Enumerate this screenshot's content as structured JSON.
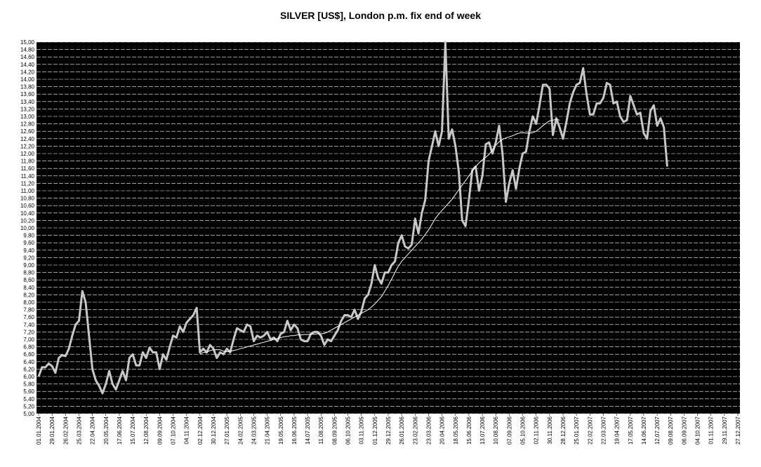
{
  "chart_data": {
    "type": "line",
    "title": "SILVER [US$], London p.m. fix end of week",
    "xlabel": "",
    "ylabel": "",
    "ylim": [
      5.0,
      15.0
    ],
    "y_ticks": [
      "5,00",
      "5,20",
      "5,40",
      "5,60",
      "5,80",
      "6,00",
      "6,20",
      "6,40",
      "6,60",
      "6,80",
      "7,00",
      "7,20",
      "7,40",
      "7,60",
      "7,80",
      "8,00",
      "8,20",
      "8,40",
      "8,60",
      "8,80",
      "9,00",
      "9,20",
      "9,40",
      "9,60",
      "9,80",
      "10,00",
      "10,20",
      "10,40",
      "10,60",
      "10,80",
      "11,00",
      "11,20",
      "11,40",
      "11,60",
      "11,80",
      "12,00",
      "12,20",
      "12,40",
      "12,60",
      "12,80",
      "13,00",
      "13,20",
      "13,40",
      "13,60",
      "13,80",
      "14,00",
      "14,20",
      "14,40",
      "14,60",
      "14,80",
      "15,00"
    ],
    "x_ticks": [
      "01.01.2004",
      "29.01.2004",
      "26.02.2004",
      "25.03.2004",
      "22.04.2004",
      "20.05.2004",
      "17.06.2004",
      "15.07.2004",
      "12.08.2004",
      "09.09.2004",
      "07.10.2004",
      "04.11.2004",
      "02.12.2004",
      "30.12.2004",
      "27.01.2005",
      "24.02.2005",
      "24.03.2005",
      "21.04.2005",
      "19.05.2005",
      "16.06.2005",
      "14.07.2005",
      "11.08.2005",
      "08.09.2005",
      "06.10.2005",
      "03.11.2005",
      "01.12.2005",
      "29.12.2005",
      "26.01.2006",
      "23.02.2006",
      "23.03.2006",
      "20.04.2006",
      "18.05.2006",
      "15.06.2006",
      "13.07.2006",
      "10.08.2006",
      "07.09.2006",
      "05.10.2006",
      "02.11.2006",
      "30.11.2006",
      "28.12.2006",
      "25.01.2007",
      "22.02.2007",
      "22.03.2007",
      "19.04.2007",
      "17.05.2007",
      "14.06.2007",
      "12.07.2007",
      "09.08.2007",
      "06.09.2007",
      "04.10.2007",
      "01.11.2007",
      "29.11.2007",
      "27.12.2007"
    ],
    "background": "#000000",
    "grid": "horizontal",
    "series": [
      {
        "color": "#c8c8c8",
        "values": [
          6.0,
          6.25,
          6.25,
          6.35,
          6.28,
          6.1,
          6.5,
          6.58,
          6.55,
          6.75,
          7.1,
          7.4,
          7.5,
          8.3,
          8.0,
          7.1,
          6.2,
          5.9,
          5.75,
          5.55,
          5.8,
          6.15,
          5.8,
          5.65,
          5.9,
          6.15,
          5.9,
          6.5,
          6.6,
          6.3,
          6.3,
          6.65,
          6.5,
          6.78,
          6.65,
          6.65,
          6.2,
          6.6,
          6.45,
          6.8,
          7.1,
          7.05,
          7.35,
          7.2,
          7.45,
          7.55,
          7.65,
          7.85,
          6.65,
          6.75,
          6.65,
          6.85,
          6.75,
          6.5,
          6.65,
          6.6,
          6.75,
          6.65,
          7.0,
          7.3,
          7.25,
          7.2,
          7.4,
          7.35,
          6.95,
          7.1,
          7.05,
          7.1,
          7.2,
          7.0,
          7.05,
          6.95,
          7.15,
          7.2,
          7.5,
          7.25,
          7.4,
          7.3,
          7.0,
          6.95,
          6.95,
          7.15,
          7.2,
          7.2,
          7.1,
          6.85,
          7.0,
          6.95,
          7.1,
          7.25,
          7.5,
          7.65,
          7.65,
          7.6,
          7.8,
          7.55,
          7.75,
          8.1,
          8.2,
          8.5,
          9.0,
          8.65,
          8.5,
          8.8,
          8.8,
          9.0,
          9.1,
          9.6,
          9.8,
          9.5,
          9.45,
          9.55,
          10.25,
          9.85,
          10.4,
          10.75,
          11.8,
          12.2,
          12.6,
          12.2,
          12.6,
          15.0,
          12.4,
          12.65,
          12.2,
          11.5,
          10.2,
          10.05,
          10.75,
          11.55,
          11.65,
          11.0,
          11.4,
          12.25,
          12.3,
          12.0,
          12.3,
          12.75,
          12.0,
          10.7,
          11.2,
          11.55,
          11.05,
          11.6,
          12.0,
          12.05,
          12.6,
          13.0,
          12.8,
          13.3,
          13.85,
          13.85,
          13.75,
          12.5,
          12.95,
          12.7,
          12.4,
          12.85,
          13.35,
          13.65,
          13.85,
          13.9,
          14.3,
          13.6,
          13.05,
          13.05,
          13.35,
          13.35,
          13.5,
          13.9,
          13.85,
          13.35,
          13.4,
          13.0,
          12.85,
          12.9,
          13.55,
          13.3,
          13.05,
          13.1,
          12.55,
          12.4,
          13.15,
          13.3,
          12.75,
          12.95,
          12.7,
          11.65
        ]
      },
      {
        "color": "#ffffff",
        "values": [
          6.6,
          6.65,
          6.65,
          6.7,
          6.72,
          6.72,
          6.72,
          6.68,
          6.67,
          6.68,
          6.7,
          6.72,
          6.75,
          6.77,
          6.8,
          6.82,
          6.85,
          6.87,
          6.9,
          6.92,
          6.95,
          6.97,
          7.0,
          7.02,
          7.05,
          7.07,
          7.08,
          7.1,
          7.1,
          7.12,
          7.12,
          7.13,
          7.13,
          7.14,
          7.14,
          7.15,
          7.15,
          7.16,
          7.2,
          7.25,
          7.3,
          7.35,
          7.4,
          7.45,
          7.5,
          7.55,
          7.6,
          7.65,
          7.7,
          7.75,
          7.8,
          7.87,
          7.95,
          8.05,
          8.15,
          8.3,
          8.45,
          8.62,
          8.8,
          8.97,
          9.1,
          9.2,
          9.3,
          9.4,
          9.5,
          9.6,
          9.7,
          9.82,
          9.95,
          10.1,
          10.25,
          10.37,
          10.47,
          10.57,
          10.67,
          10.77,
          10.9,
          11.03,
          11.15,
          11.27,
          11.4,
          11.52,
          11.65,
          11.75,
          11.83,
          11.9,
          11.98,
          12.1,
          12.22,
          12.32,
          12.38,
          12.42,
          12.45,
          12.48,
          12.52,
          12.55,
          12.56,
          12.55,
          12.55,
          12.56,
          12.6,
          12.67,
          12.75,
          12.82,
          12.88,
          12.9,
          12.92,
          12.9
        ]
      }
    ]
  }
}
